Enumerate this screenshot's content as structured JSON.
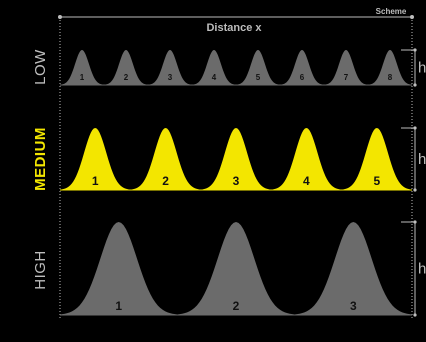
{
  "header": {
    "distance_label": "Distance x",
    "scheme_label": "Scheme"
  },
  "colors": {
    "background": "#000000",
    "gray_bump": "#6b6b6b",
    "yellow_bump": "#f3e600",
    "guide_line": "#bdbdbd",
    "label_gray": "#bdbdbd",
    "label_yellow": "#f3e600",
    "num_on_gray": "#111111",
    "num_on_yellow": "#111111"
  },
  "rows": [
    {
      "label": "LOW",
      "highlight": false,
      "count": 8,
      "numbers": [
        "1",
        "2",
        "3",
        "4",
        "5",
        "6",
        "7",
        "8"
      ],
      "height_label": "h"
    },
    {
      "label": "MEDIUM",
      "highlight": true,
      "count": 5,
      "numbers": [
        "1",
        "2",
        "3",
        "4",
        "5"
      ],
      "height_label": "h"
    },
    {
      "label": "HIGH",
      "highlight": false,
      "count": 3,
      "numbers": [
        "1",
        "2",
        "3"
      ],
      "height_label": "h"
    }
  ]
}
